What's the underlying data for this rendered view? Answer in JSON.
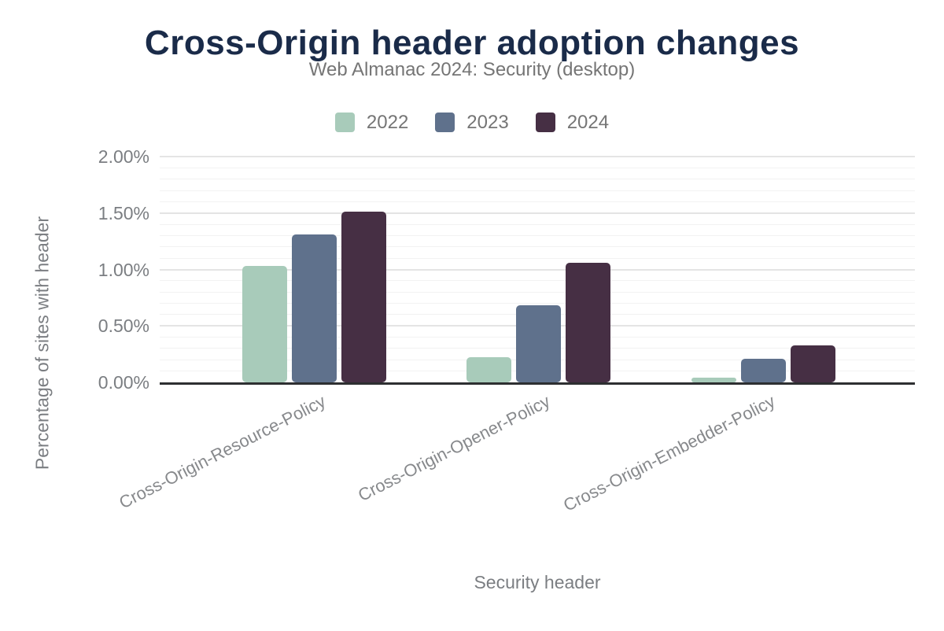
{
  "chart_data": {
    "type": "bar",
    "title": "Cross-Origin header adoption changes",
    "subtitle": "Web Almanac 2024: Security (desktop)",
    "xlabel": "Security header",
    "ylabel": "Percentage of sites with header",
    "categories": [
      "Cross-Origin-Resource-Policy",
      "Cross-Origin-Opener-Policy",
      "Cross-Origin-Embedder-Policy"
    ],
    "series": [
      {
        "name": "2022",
        "color": "#a8cbba",
        "values": [
          1.03,
          0.22,
          0.04
        ]
      },
      {
        "name": "2023",
        "color": "#5f718c",
        "values": [
          1.31,
          0.68,
          0.21
        ]
      },
      {
        "name": "2024",
        "color": "#462f44",
        "values": [
          1.51,
          1.06,
          0.33
        ]
      }
    ],
    "ylim": [
      0,
      2.0
    ],
    "y_major_step": 0.5,
    "y_minor_step": 0.1,
    "y_ticks": [
      {
        "value": 0,
        "label": "0.00%"
      },
      {
        "value": 0.5,
        "label": "0.50%"
      },
      {
        "value": 1.0,
        "label": "1.00%"
      },
      {
        "value": 1.5,
        "label": "1.50%"
      },
      {
        "value": 2.0,
        "label": "2.00%"
      }
    ],
    "legend_position": "top",
    "grid": true,
    "colors": {
      "title": "#1a2b49",
      "subtitle": "#757575",
      "legend_text": "#757575",
      "axis_text": "#7b7e82",
      "category_text": "#87898c",
      "axis_line": "#2d2f31",
      "grid_major": "#e4e4e4",
      "grid_minor": "#f2f2f2",
      "background": "#ffffff"
    }
  }
}
